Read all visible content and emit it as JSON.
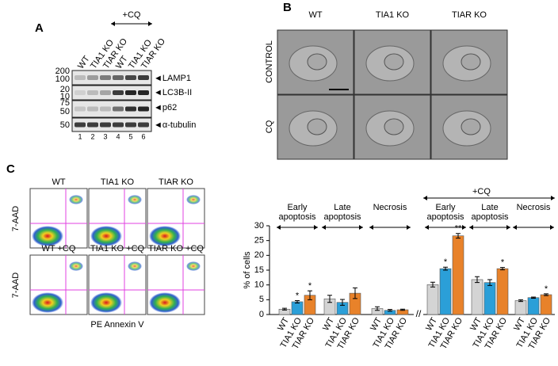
{
  "panel_a": {
    "letter": "A",
    "treatment": "+CQ",
    "lanes": [
      "WT",
      "TIA1 KO",
      "TIAR KO",
      "WT",
      "TIA1 KO",
      "TIAR KO"
    ],
    "lane_numbers": [
      "1",
      "2",
      "3",
      "4",
      "5",
      "6"
    ],
    "rows": [
      {
        "markers": [
          "200",
          "100"
        ],
        "protein": "◄LAMP1"
      },
      {
        "markers": [
          "20",
          "10"
        ],
        "protein": "◄LC3B-II"
      },
      {
        "markers": [
          "75",
          "50"
        ],
        "protein": "◄p62"
      },
      {
        "markers": [
          "50"
        ],
        "protein": "◄α-tubulin"
      }
    ]
  },
  "panel_b": {
    "letter": "B",
    "columns": [
      "WT",
      "TIA1 KO",
      "TIAR KO"
    ],
    "rows": [
      "CONTROL",
      "CQ"
    ]
  },
  "panel_c": {
    "letter": "C",
    "plots": [
      "WT",
      "TIA1 KO",
      "TIAR KO",
      "WT +CQ",
      "TIA1 KO +CQ",
      "TIAR KO +CQ"
    ],
    "y_label": "7-AAD",
    "x_label": "PE Annexin V"
  },
  "chart_data": {
    "type": "bar",
    "y_label": "% of cells",
    "ylim": [
      0,
      30
    ],
    "yticks": [
      0,
      5,
      10,
      15,
      20,
      25,
      30
    ],
    "groups": [
      "Early apoptosis",
      "Late apoptosis",
      "Necrosis",
      "Early apoptosis",
      "Late apoptosis",
      "Necrosis"
    ],
    "treatment": "+CQ",
    "axis_break": "//",
    "series": [
      {
        "name": "WT",
        "color": "#d4d4d4",
        "values": [
          1.8,
          5.3,
          2.0,
          10.1,
          11.8,
          4.7
        ],
        "errors": [
          0.3,
          1.2,
          0.6,
          0.8,
          1.0,
          0.3
        ],
        "annotations": [
          null,
          null,
          null,
          null,
          null,
          null
        ]
      },
      {
        "name": "TIA1 KO",
        "color": "#2b9fd8",
        "values": [
          4.3,
          4.1,
          1.4,
          15.5,
          10.8,
          5.7
        ],
        "errors": [
          0.4,
          1.0,
          0.3,
          0.5,
          1.0,
          0.2
        ],
        "annotations": [
          "*",
          null,
          null,
          "*",
          null,
          null
        ]
      },
      {
        "name": "TIAR KO",
        "color": "#e8822a",
        "values": [
          6.5,
          7.2,
          1.6,
          26.6,
          15.5,
          6.7
        ],
        "errors": [
          1.5,
          1.8,
          0.2,
          0.8,
          0.4,
          0.3
        ],
        "annotations": [
          "*",
          null,
          null,
          "**",
          "*",
          "*"
        ]
      }
    ]
  }
}
